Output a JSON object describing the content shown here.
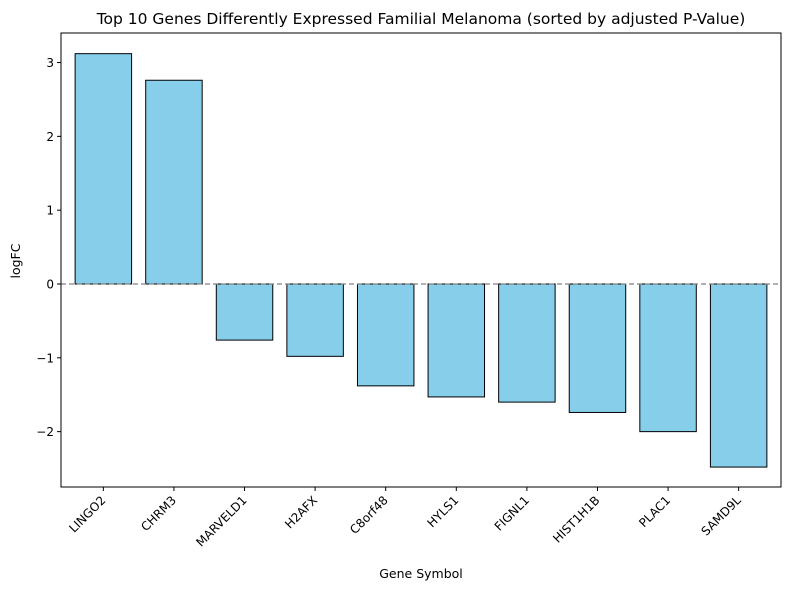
{
  "chart_data": {
    "type": "bar",
    "title": "Top 10 Genes Differently Expressed Familial Melanoma (sorted by adjusted P-Value)",
    "xlabel": "Gene Symbol",
    "ylabel": "logFC",
    "categories": [
      "LINGO2",
      "CHRM3",
      "MARVELD1",
      "H2AFX",
      "C8orf48",
      "HYLS1",
      "FIGNL1",
      "HIST1H1B",
      "PLAC1",
      "SAMD9L"
    ],
    "values": [
      3.12,
      2.76,
      -0.76,
      -0.98,
      -1.38,
      -1.53,
      -1.6,
      -1.74,
      -2.0,
      -2.48
    ],
    "ylim": [
      -2.75,
      3.4
    ],
    "yticks": [
      {
        "value": 3,
        "label": "3"
      },
      {
        "value": 2,
        "label": "2"
      },
      {
        "value": 1,
        "label": "1"
      },
      {
        "value": 0,
        "label": "0"
      },
      {
        "value": -1,
        "label": "−1"
      },
      {
        "value": -2,
        "label": "−2"
      }
    ],
    "reference_line": 0,
    "grid": false,
    "colors": {
      "bar_fill": "#87ceeb",
      "bar_edge": "#000000",
      "reference_line": "#808080"
    }
  }
}
